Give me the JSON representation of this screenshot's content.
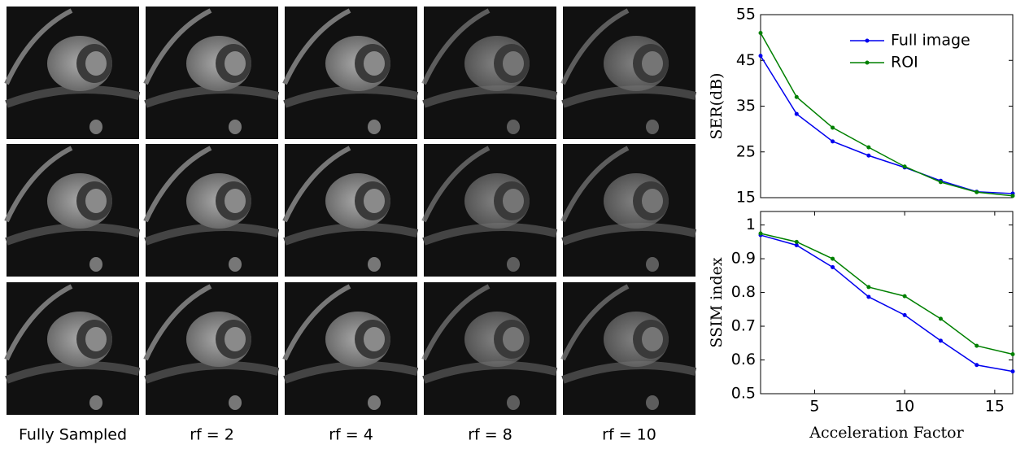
{
  "image_grid": {
    "column_labels": [
      "Fully Sampled",
      "rf = 2",
      "rf = 4",
      "rf = 8",
      "rf = 10"
    ]
  },
  "chart_data": [
    {
      "type": "line",
      "ylabel": "SER(dB)",
      "x": [
        2,
        4,
        6,
        8,
        10,
        12,
        14,
        16
      ],
      "series": [
        {
          "name": "Full image",
          "color": "#0000ee",
          "values": [
            46,
            33.3,
            27.3,
            24.2,
            21.6,
            18.7,
            16.3,
            15.9
          ]
        },
        {
          "name": "ROI",
          "color": "#008000",
          "values": [
            51,
            37,
            30.3,
            26,
            21.8,
            18.4,
            16.2,
            15.4
          ]
        }
      ],
      "xlim": [
        2,
        16
      ],
      "ylim": [
        15,
        55
      ],
      "yticks": [
        15,
        25,
        35,
        45,
        55
      ],
      "legend": "upper right"
    },
    {
      "type": "line",
      "ylabel": "SSIM index",
      "xlabel": "Acceleration Factor",
      "x": [
        2,
        4,
        6,
        8,
        10,
        12,
        14,
        16
      ],
      "series": [
        {
          "name": "Full image",
          "color": "#0000ee",
          "values": [
            0.97,
            0.94,
            0.875,
            0.787,
            0.733,
            0.657,
            0.585,
            0.566
          ]
        },
        {
          "name": "ROI",
          "color": "#008000",
          "values": [
            0.975,
            0.95,
            0.9,
            0.816,
            0.789,
            0.722,
            0.642,
            0.617
          ]
        }
      ],
      "xlim": [
        2,
        16
      ],
      "ylim": [
        0.5,
        1.04
      ],
      "xticks": [
        5,
        10,
        15
      ],
      "yticks": [
        0.5,
        0.6,
        0.7,
        0.8,
        0.9,
        1
      ]
    }
  ]
}
